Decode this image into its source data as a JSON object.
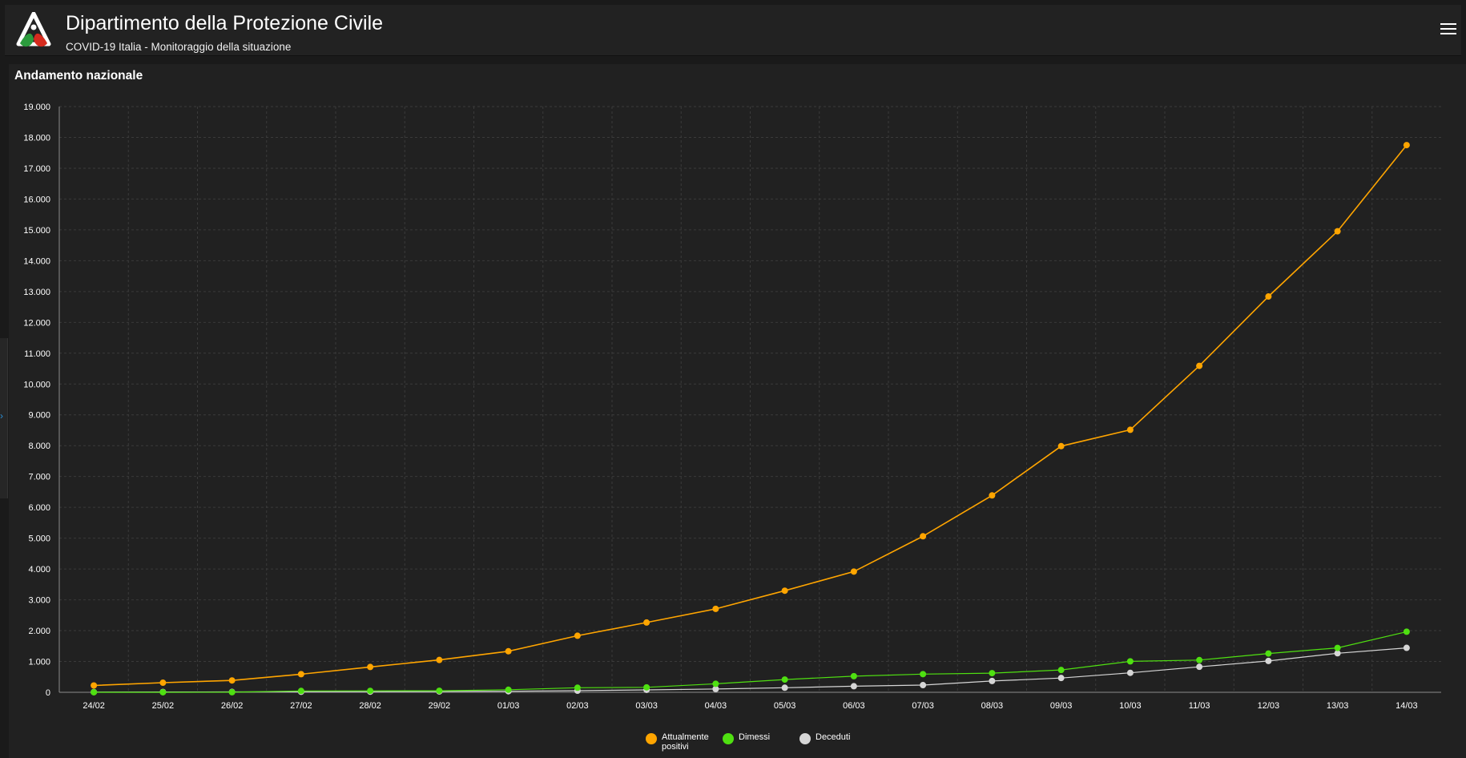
{
  "header": {
    "title": "Dipartimento della Protezione Civile",
    "subtitle": "COVID-19 Italia - Monitoraggio della situazione"
  },
  "panel": {
    "title": "Andamento nazionale"
  },
  "colors": {
    "positivi": "#ffa500",
    "dimessi": "#4fe011",
    "deceduti": "#d6d6d6",
    "grid": "#3a3a3a",
    "axis": "#8a8a8a"
  },
  "chart_data": {
    "type": "line",
    "title": "Andamento nazionale",
    "categories": [
      "24/02",
      "25/02",
      "26/02",
      "27/02",
      "28/02",
      "29/02",
      "01/03",
      "02/03",
      "03/03",
      "04/03",
      "05/03",
      "06/03",
      "07/03",
      "08/03",
      "09/03",
      "10/03",
      "11/03",
      "12/03",
      "13/03",
      "14/03"
    ],
    "ylim": [
      0,
      19000
    ],
    "yticks": [
      0,
      1000,
      2000,
      3000,
      4000,
      5000,
      6000,
      7000,
      8000,
      9000,
      10000,
      11000,
      12000,
      13000,
      14000,
      15000,
      16000,
      17000,
      18000,
      19000
    ],
    "ytick_labels": [
      "0",
      "1.000",
      "2.000",
      "3.000",
      "4.000",
      "5.000",
      "6.000",
      "7.000",
      "8.000",
      "9.000",
      "10.000",
      "11.000",
      "12.000",
      "13.000",
      "14.000",
      "15.000",
      "16.000",
      "17.000",
      "18.000",
      "19.000"
    ],
    "grid": true,
    "legend_position": "bottom-center",
    "series": [
      {
        "name": "Attualmente positivi",
        "color": "#ffa500",
        "values": [
          221,
          311,
          385,
          588,
          821,
          1049,
          1331,
          1835,
          2263,
          2706,
          3296,
          3916,
          5061,
          6387,
          7985,
          8514,
          10590,
          12839,
          14955,
          17750
        ]
      },
      {
        "name": "Dimessi",
        "color": "#4fe011",
        "values": [
          1,
          1,
          3,
          45,
          46,
          50,
          83,
          149,
          160,
          276,
          414,
          523,
          589,
          622,
          724,
          1004,
          1045,
          1258,
          1439,
          1966
        ]
      },
      {
        "name": "Deceduti",
        "color": "#d6d6d6",
        "values": [
          7,
          10,
          12,
          17,
          21,
          29,
          34,
          52,
          79,
          107,
          148,
          197,
          233,
          366,
          463,
          631,
          827,
          1016,
          1266,
          1441
        ]
      }
    ]
  }
}
